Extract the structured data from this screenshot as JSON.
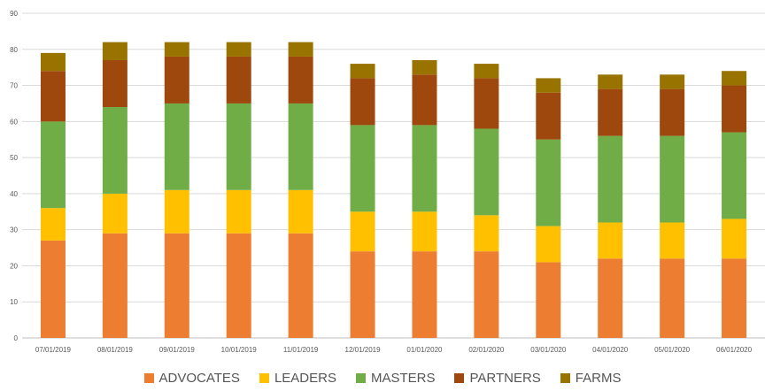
{
  "chart_data": {
    "type": "bar",
    "stacked": true,
    "title": "",
    "xlabel": "",
    "ylabel": "",
    "ylim": [
      0,
      90
    ],
    "yticks": [
      "0",
      "10",
      "20",
      "30",
      "40",
      "50",
      "60",
      "70",
      "80",
      "90"
    ],
    "grid": true,
    "legend_position": "bottom",
    "categories": [
      "07/01/2019",
      "08/01/2019",
      "09/01/2019",
      "10/01/2019",
      "11/01/2019",
      "12/01/2019",
      "01/01/2020",
      "02/01/2020",
      "03/01/2020",
      "04/01/2020",
      "05/01/2020",
      "06/01/2020"
    ],
    "series": [
      {
        "name": "ADVOCATES",
        "color": "#ED7D31",
        "values": [
          27,
          29,
          29,
          29,
          29,
          24,
          24,
          24,
          21,
          22,
          22,
          22
        ]
      },
      {
        "name": "LEADERS",
        "color": "#FFC000",
        "values": [
          9,
          11,
          12,
          12,
          12,
          11,
          11,
          10,
          10,
          10,
          10,
          11
        ]
      },
      {
        "name": "MASTERS",
        "color": "#70AD47",
        "values": [
          24,
          24,
          24,
          24,
          24,
          24,
          24,
          24,
          24,
          24,
          24,
          24
        ]
      },
      {
        "name": "PARTNERS",
        "color": "#9E480E",
        "values": [
          14,
          13,
          13,
          13,
          13,
          13,
          14,
          14,
          13,
          13,
          13,
          13
        ]
      },
      {
        "name": "FARMS",
        "color": "#997300",
        "values": [
          5,
          5,
          4,
          4,
          4,
          4,
          4,
          4,
          4,
          4,
          4,
          4
        ]
      }
    ]
  }
}
